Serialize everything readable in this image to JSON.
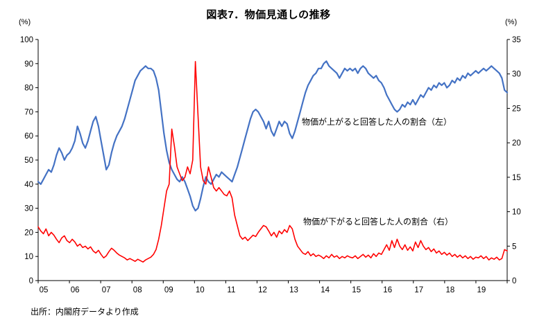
{
  "page": {
    "title": "図表7．物価見通しの推移",
    "source": "出所：内閣府データより作成"
  },
  "chart_data": {
    "type": "line",
    "title": "図表7．物価見通しの推移",
    "x_unit": "month",
    "x_start": "2005-01",
    "x_end": "2019-12",
    "points_per_year": 12,
    "x_tick_labels": [
      "05",
      "06",
      "07",
      "08",
      "09",
      "10",
      "11",
      "12",
      "13",
      "14",
      "15",
      "16",
      "17",
      "18",
      "19"
    ],
    "axes": {
      "left": {
        "label": "(%)",
        "min": 0,
        "max": 100,
        "step": 10
      },
      "right": {
        "label": "(%)",
        "min": 0,
        "max": 35,
        "step": 5
      }
    },
    "grid": false,
    "legend_position": "inline-annotations",
    "series": [
      {
        "name": "物価が上がると回答した人の割合（左）",
        "axis": "left",
        "color": "#4472C4",
        "width": 2.2,
        "values": [
          41,
          40,
          42,
          44,
          46,
          45,
          48,
          52,
          55,
          53,
          50,
          52,
          53,
          55,
          58,
          64,
          61,
          57,
          55,
          58,
          62,
          66,
          68,
          64,
          58,
          52,
          46,
          48,
          53,
          57,
          60,
          62,
          64,
          67,
          71,
          75,
          79,
          83,
          85,
          87,
          88,
          89,
          88,
          88,
          87,
          84,
          79,
          70,
          61,
          54,
          49,
          46,
          44,
          42,
          41,
          43,
          41,
          38,
          35,
          31,
          29,
          30,
          34,
          39,
          43,
          41,
          40,
          42,
          44,
          43,
          45,
          44,
          43,
          42,
          41,
          44,
          47,
          51,
          55,
          59,
          63,
          67,
          70,
          71,
          70,
          68,
          66,
          63,
          66,
          62,
          60,
          63,
          66,
          64,
          66,
          65,
          61,
          59,
          62,
          66,
          70,
          74,
          78,
          81,
          83,
          85,
          86,
          88,
          88,
          90,
          91,
          89,
          88,
          87,
          86,
          84,
          86,
          88,
          87,
          88,
          87,
          88,
          86,
          88,
          89,
          88,
          86,
          85,
          84,
          85,
          83,
          82,
          80,
          77,
          75,
          73,
          71,
          70,
          71,
          73,
          72,
          74,
          73,
          75,
          73,
          75,
          77,
          76,
          78,
          80,
          79,
          81,
          80,
          82,
          81,
          82,
          80,
          81,
          83,
          82,
          84,
          83,
          85,
          84,
          86,
          85,
          86,
          87,
          86,
          87,
          88,
          87,
          88,
          89,
          88,
          87,
          86,
          84,
          79,
          78
        ]
      },
      {
        "name": "物価が下がると回答した人の割合（右）",
        "axis": "right",
        "color": "#FF0000",
        "width": 1.6,
        "values": [
          7.8,
          7.2,
          6.8,
          7.5,
          6.5,
          7.0,
          6.6,
          6.0,
          5.5,
          6.2,
          6.5,
          5.8,
          5.5,
          6.0,
          5.6,
          5.0,
          5.3,
          4.8,
          5.0,
          4.6,
          4.9,
          4.3,
          4.0,
          4.4,
          3.8,
          3.3,
          3.6,
          4.2,
          4.7,
          4.4,
          4.0,
          3.7,
          3.5,
          3.3,
          3.0,
          3.2,
          3.0,
          2.8,
          3.1,
          2.9,
          2.7,
          3.0,
          3.2,
          3.4,
          3.8,
          4.5,
          6.0,
          8.0,
          10.5,
          13.0,
          14.0,
          22.0,
          19.5,
          16.5,
          15.5,
          14.5,
          15.0,
          16.5,
          15.5,
          17.5,
          31.8,
          24.0,
          16.5,
          14.5,
          14.0,
          16.5,
          15.0,
          13.5,
          13.0,
          13.5,
          13.0,
          12.5,
          12.3,
          13.0,
          12.0,
          9.5,
          8.0,
          6.5,
          6.0,
          6.3,
          5.8,
          6.2,
          6.6,
          6.4,
          7.0,
          7.5,
          8.0,
          7.8,
          7.2,
          6.5,
          7.0,
          6.3,
          7.2,
          6.8,
          7.4,
          7.0,
          8.0,
          7.5,
          6.0,
          5.0,
          4.5,
          4.0,
          3.8,
          4.2,
          3.6,
          3.9,
          3.5,
          3.7,
          3.5,
          3.2,
          3.6,
          3.3,
          3.8,
          3.4,
          3.6,
          3.2,
          3.5,
          3.3,
          3.6,
          3.4,
          3.3,
          3.6,
          3.2,
          3.5,
          3.8,
          3.4,
          3.7,
          3.3,
          3.9,
          3.5,
          4.0,
          3.8,
          4.5,
          5.2,
          4.4,
          5.8,
          4.8,
          6.0,
          5.0,
          4.5,
          5.2,
          4.4,
          4.9,
          4.3,
          5.6,
          4.8,
          5.8,
          5.0,
          4.5,
          4.8,
          4.2,
          4.6,
          4.0,
          4.3,
          3.8,
          4.1,
          3.7,
          4.0,
          3.5,
          3.8,
          3.4,
          3.7,
          3.3,
          3.6,
          3.2,
          3.5,
          3.1,
          3.4,
          3.3,
          3.6,
          3.2,
          3.5,
          3.0,
          3.3,
          3.1,
          3.4,
          3.0,
          3.2,
          4.5,
          4.3
        ]
      }
    ],
    "annotations": [
      {
        "text": "物価が上がると回答した人の割合（左）",
        "target_series": 0
      },
      {
        "text": "物価が下がると回答した人の割合（右）",
        "target_series": 1
      }
    ]
  }
}
